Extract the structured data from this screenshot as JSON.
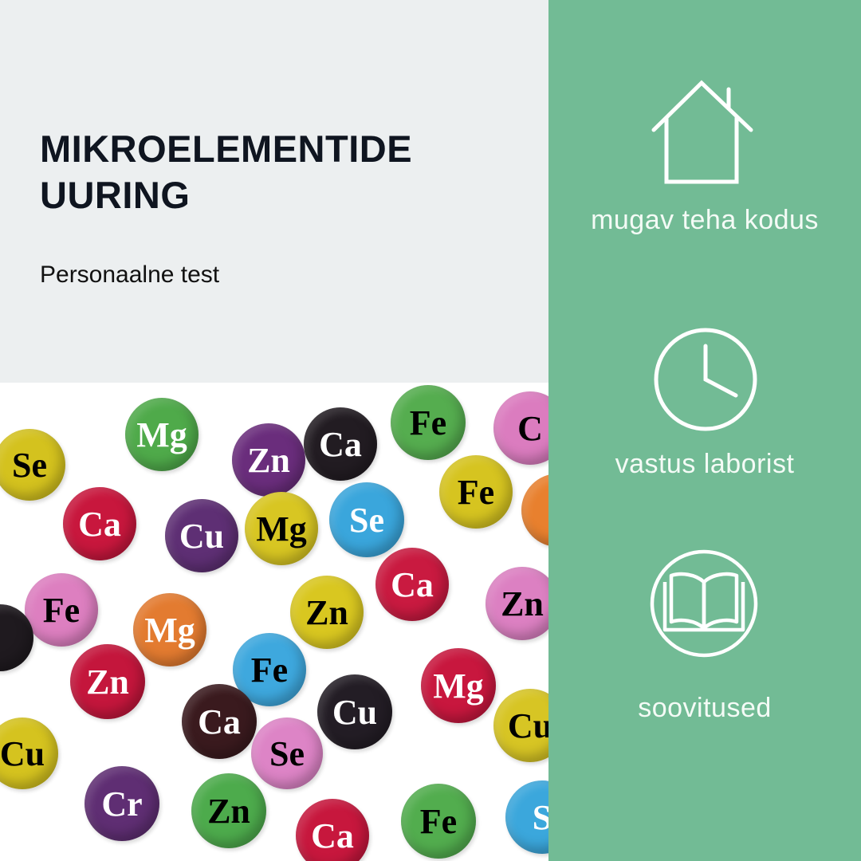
{
  "header": {
    "title_line1": "MIKROELEMENTIDE",
    "title_line2": "UURING",
    "subtitle": "Personaalne test"
  },
  "colors": {
    "top_background": "#eceff0",
    "panel_background": "#72bb95",
    "title_text": "#0f1520"
  },
  "features": [
    {
      "icon": "house-icon",
      "label": "mugav teha kodus"
    },
    {
      "icon": "clock-icon",
      "label": "vastus laborist"
    },
    {
      "icon": "open-book-icon",
      "label": "soovitused"
    }
  ],
  "photo_balls": [
    {
      "label": "Se",
      "color": "#d4c21e",
      "text": "#000"
    },
    {
      "label": "Mg",
      "color": "#4faa4a",
      "text": "#fff"
    },
    {
      "label": "Zn",
      "color": "#6a2d7c",
      "text": "#fff"
    },
    {
      "label": "Ca",
      "color": "#221c22",
      "text": "#fff"
    },
    {
      "label": "Fe",
      "color": "#55ad4f",
      "text": "#000"
    },
    {
      "label": "C",
      "color": "#db7cbf",
      "text": "#000"
    },
    {
      "label": "Ca",
      "color": "#c8173d",
      "text": "#fff"
    },
    {
      "label": "Cu",
      "color": "#5e2f74",
      "text": "#fff"
    },
    {
      "label": "Mg",
      "color": "#d8c622",
      "text": "#000"
    },
    {
      "label": "Se",
      "color": "#3aa6dc",
      "text": "#fff"
    },
    {
      "label": "Fe",
      "color": "#d6c420",
      "text": "#000"
    },
    {
      "label": "",
      "color": "#e8802e",
      "text": "#fff"
    },
    {
      "label": "Fe",
      "color": "#dd7fc0",
      "text": "#000"
    },
    {
      "label": "Mg",
      "color": "#e37b30",
      "text": "#fff"
    },
    {
      "label": "Zn",
      "color": "#d9c720",
      "text": "#000"
    },
    {
      "label": "Ca",
      "color": "#c91a40",
      "text": "#fff"
    },
    {
      "label": "Zn",
      "color": "#dc80c2",
      "text": "#000"
    },
    {
      "label": "",
      "color": "#1f1a1f",
      "text": "#fff"
    },
    {
      "label": "Fe",
      "color": "#3ea8de",
      "text": "#000"
    },
    {
      "label": "Zn",
      "color": "#c4163c",
      "text": "#fff"
    },
    {
      "label": "Cu",
      "color": "#231d25",
      "text": "#fff"
    },
    {
      "label": "Mg",
      "color": "#c8173e",
      "text": "#fff"
    },
    {
      "label": "Ca",
      "color": "#3a1a1e",
      "text": "#fff"
    },
    {
      "label": "Se",
      "color": "#dd84c6",
      "text": "#000"
    },
    {
      "label": "Cu",
      "color": "#d5c31f",
      "text": "#000"
    },
    {
      "label": "Cu",
      "color": "#d7c524",
      "text": "#000"
    },
    {
      "label": "Cr",
      "color": "#5f2e73",
      "text": "#fff"
    },
    {
      "label": "Zn",
      "color": "#4dab4c",
      "text": "#000"
    },
    {
      "label": "Ca",
      "color": "#c7173d",
      "text": "#fff"
    },
    {
      "label": "Fe",
      "color": "#52ad4e",
      "text": "#000"
    },
    {
      "label": "S",
      "color": "#3ba7dc",
      "text": "#fff"
    }
  ]
}
